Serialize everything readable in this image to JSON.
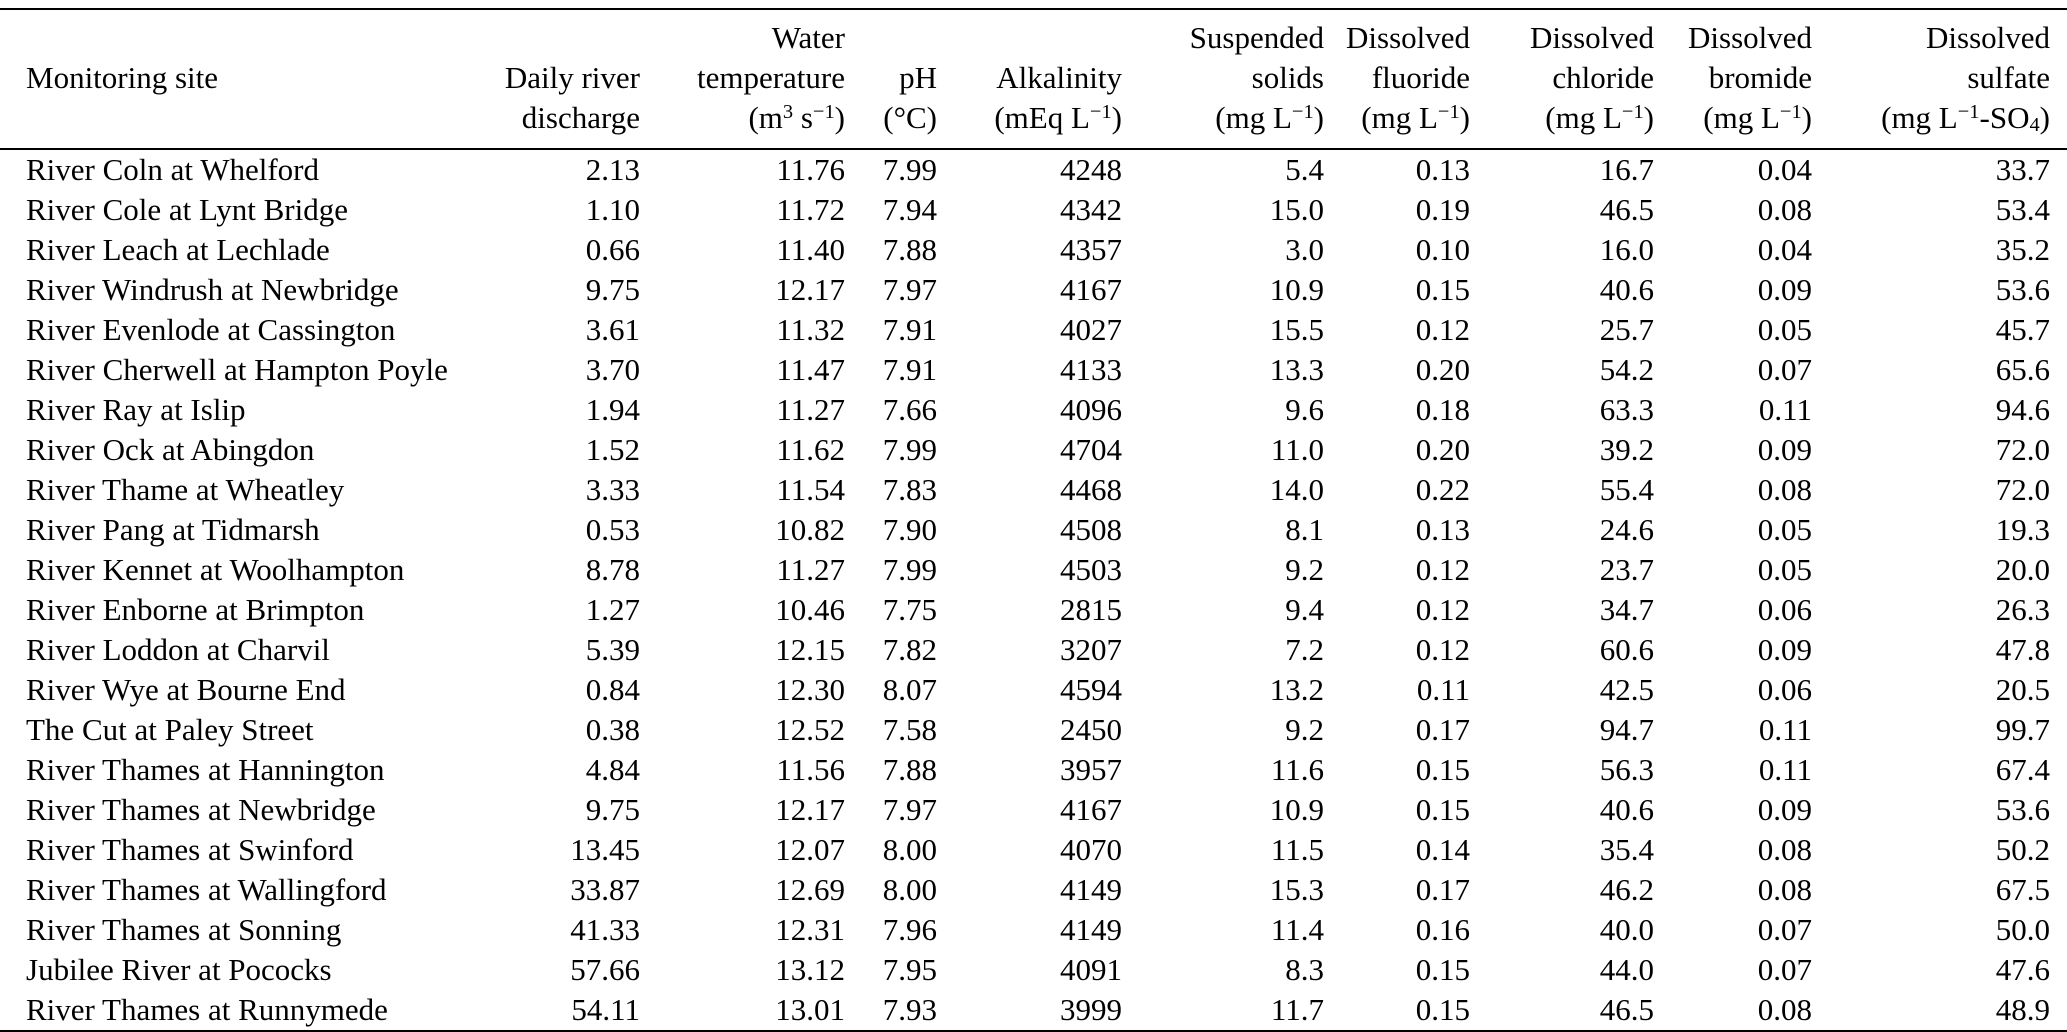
{
  "colors": {
    "text": "#000000",
    "background": "#ffffff"
  },
  "table": {
    "columns": [
      {
        "name": "monitoring-site",
        "line1": "",
        "line2": "Monitoring site",
        "line3": ""
      },
      {
        "name": "daily-river-discharge",
        "line1": "",
        "line2": "Daily river",
        "line3": "discharge"
      },
      {
        "name": "water-temperature",
        "line1": "Water",
        "line2": "temperature",
        "line3": "(m<sup>3</sup> s<sup>−1</sup>)"
      },
      {
        "name": "ph",
        "line1": "",
        "line2": "pH",
        "line3": "(°C)"
      },
      {
        "name": "alkalinity",
        "line1": "",
        "line2": "Alkalinity",
        "line3": "(mEq L<sup>−1</sup>)"
      },
      {
        "name": "suspended-solids",
        "line1": "Suspended",
        "line2": "solids",
        "line3": "(mg L<sup>−1</sup>)"
      },
      {
        "name": "dissolved-fluoride",
        "line1": "Dissolved",
        "line2": "fluoride",
        "line3": "(mg L<sup>−1</sup>)"
      },
      {
        "name": "dissolved-chloride",
        "line1": "Dissolved",
        "line2": "chloride",
        "line3": "(mg L<sup>−1</sup>)"
      },
      {
        "name": "dissolved-bromide",
        "line1": "Dissolved",
        "line2": "bromide",
        "line3": "(mg L<sup>−1</sup>)"
      },
      {
        "name": "dissolved-sulfate",
        "line1": "Dissolved",
        "line2": "sulfate",
        "line3": "(mg L<sup>−1</sup>-SO<sub>4</sub>)"
      }
    ],
    "rows": [
      {
        "site": "River Coln at Whelford",
        "values": [
          "2.13",
          "11.76",
          "7.99",
          "4248",
          "5.4",
          "0.13",
          "16.7",
          "0.04",
          "33.7"
        ]
      },
      {
        "site": "River Cole at Lynt Bridge",
        "values": [
          "1.10",
          "11.72",
          "7.94",
          "4342",
          "15.0",
          "0.19",
          "46.5",
          "0.08",
          "53.4"
        ]
      },
      {
        "site": "River Leach at Lechlade",
        "values": [
          "0.66",
          "11.40",
          "7.88",
          "4357",
          "3.0",
          "0.10",
          "16.0",
          "0.04",
          "35.2"
        ]
      },
      {
        "site": "River Windrush at Newbridge",
        "values": [
          "9.75",
          "12.17",
          "7.97",
          "4167",
          "10.9",
          "0.15",
          "40.6",
          "0.09",
          "53.6"
        ]
      },
      {
        "site": "River Evenlode at Cassington",
        "values": [
          "3.61",
          "11.32",
          "7.91",
          "4027",
          "15.5",
          "0.12",
          "25.7",
          "0.05",
          "45.7"
        ]
      },
      {
        "site": "River Cherwell at Hampton Poyle",
        "values": [
          "3.70",
          "11.47",
          "7.91",
          "4133",
          "13.3",
          "0.20",
          "54.2",
          "0.07",
          "65.6"
        ]
      },
      {
        "site": "River Ray at Islip",
        "values": [
          "1.94",
          "11.27",
          "7.66",
          "4096",
          "9.6",
          "0.18",
          "63.3",
          "0.11",
          "94.6"
        ]
      },
      {
        "site": "River Ock at Abingdon",
        "values": [
          "1.52",
          "11.62",
          "7.99",
          "4704",
          "11.0",
          "0.20",
          "39.2",
          "0.09",
          "72.0"
        ]
      },
      {
        "site": "River Thame at Wheatley",
        "values": [
          "3.33",
          "11.54",
          "7.83",
          "4468",
          "14.0",
          "0.22",
          "55.4",
          "0.08",
          "72.0"
        ]
      },
      {
        "site": "River Pang at Tidmarsh",
        "values": [
          "0.53",
          "10.82",
          "7.90",
          "4508",
          "8.1",
          "0.13",
          "24.6",
          "0.05",
          "19.3"
        ]
      },
      {
        "site": "River Kennet at Woolhampton",
        "values": [
          "8.78",
          "11.27",
          "7.99",
          "4503",
          "9.2",
          "0.12",
          "23.7",
          "0.05",
          "20.0"
        ]
      },
      {
        "site": "River Enborne at Brimpton",
        "values": [
          "1.27",
          "10.46",
          "7.75",
          "2815",
          "9.4",
          "0.12",
          "34.7",
          "0.06",
          "26.3"
        ]
      },
      {
        "site": "River Loddon at Charvil",
        "values": [
          "5.39",
          "12.15",
          "7.82",
          "3207",
          "7.2",
          "0.12",
          "60.6",
          "0.09",
          "47.8"
        ]
      },
      {
        "site": "River Wye at Bourne End",
        "values": [
          "0.84",
          "12.30",
          "8.07",
          "4594",
          "13.2",
          "0.11",
          "42.5",
          "0.06",
          "20.5"
        ]
      },
      {
        "site": "The Cut at Paley Street",
        "values": [
          "0.38",
          "12.52",
          "7.58",
          "2450",
          "9.2",
          "0.17",
          "94.7",
          "0.11",
          "99.7"
        ]
      },
      {
        "site": "River Thames at Hannington",
        "values": [
          "4.84",
          "11.56",
          "7.88",
          "3957",
          "11.6",
          "0.15",
          "56.3",
          "0.11",
          "67.4"
        ]
      },
      {
        "site": "River Thames at Newbridge",
        "values": [
          "9.75",
          "12.17",
          "7.97",
          "4167",
          "10.9",
          "0.15",
          "40.6",
          "0.09",
          "53.6"
        ]
      },
      {
        "site": "River Thames at Swinford",
        "values": [
          "13.45",
          "12.07",
          "8.00",
          "4070",
          "11.5",
          "0.14",
          "35.4",
          "0.08",
          "50.2"
        ]
      },
      {
        "site": "River Thames at Wallingford",
        "values": [
          "33.87",
          "12.69",
          "8.00",
          "4149",
          "15.3",
          "0.17",
          "46.2",
          "0.08",
          "67.5"
        ]
      },
      {
        "site": "River Thames at Sonning",
        "values": [
          "41.33",
          "12.31",
          "7.96",
          "4149",
          "11.4",
          "0.16",
          "40.0",
          "0.07",
          "50.0"
        ]
      },
      {
        "site": "Jubilee River at Pococks",
        "values": [
          "57.66",
          "13.12",
          "7.95",
          "4091",
          "8.3",
          "0.15",
          "44.0",
          "0.07",
          "47.6"
        ]
      },
      {
        "site": "River Thames at Runnymede",
        "values": [
          "54.11",
          "13.01",
          "7.93",
          "3999",
          "11.7",
          "0.15",
          "46.5",
          "0.08",
          "48.9"
        ]
      }
    ]
  }
}
